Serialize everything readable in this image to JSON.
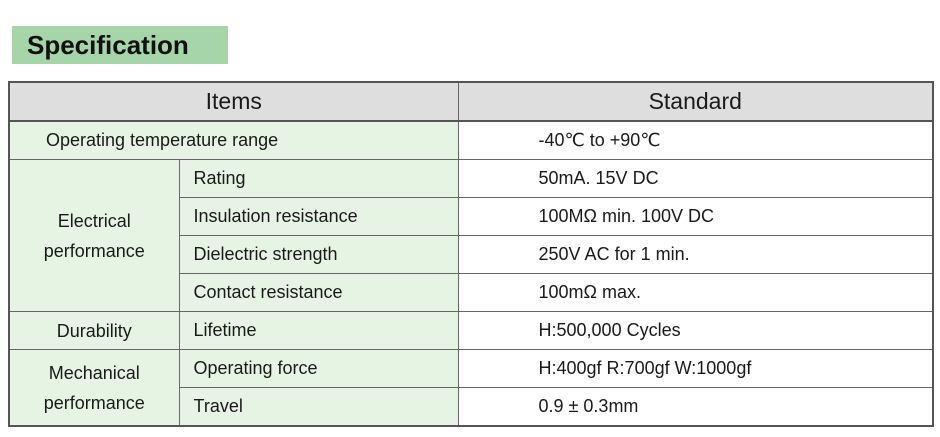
{
  "heading": "Specification",
  "table": {
    "headers": {
      "items": "Items",
      "standard": "Standard"
    },
    "operating_temperature": {
      "label": "Operating temperature range",
      "value": "-40℃ to +90℃"
    },
    "electrical": {
      "category": [
        "Electrical",
        "performance"
      ],
      "rows": [
        {
          "item": "Rating",
          "value": "50mA. 15V DC"
        },
        {
          "item": "Insulation resistance",
          "value": "100MΩ min. 100V DC"
        },
        {
          "item": "Dielectric strength",
          "value": "250V AC for 1 min."
        },
        {
          "item": "Contact resistance",
          "value": "100mΩ max."
        }
      ]
    },
    "durability": {
      "category": "Durability",
      "rows": [
        {
          "item": "Lifetime",
          "value": "H:500,000 Cycles"
        }
      ]
    },
    "mechanical": {
      "category": [
        "Mechanical",
        "performance"
      ],
      "rows": [
        {
          "item": "Operating force",
          "value": "H:400gf R:700gf W:1000gf"
        },
        {
          "item": "Travel",
          "value": "0.9 ± 0.3mm"
        }
      ]
    }
  }
}
